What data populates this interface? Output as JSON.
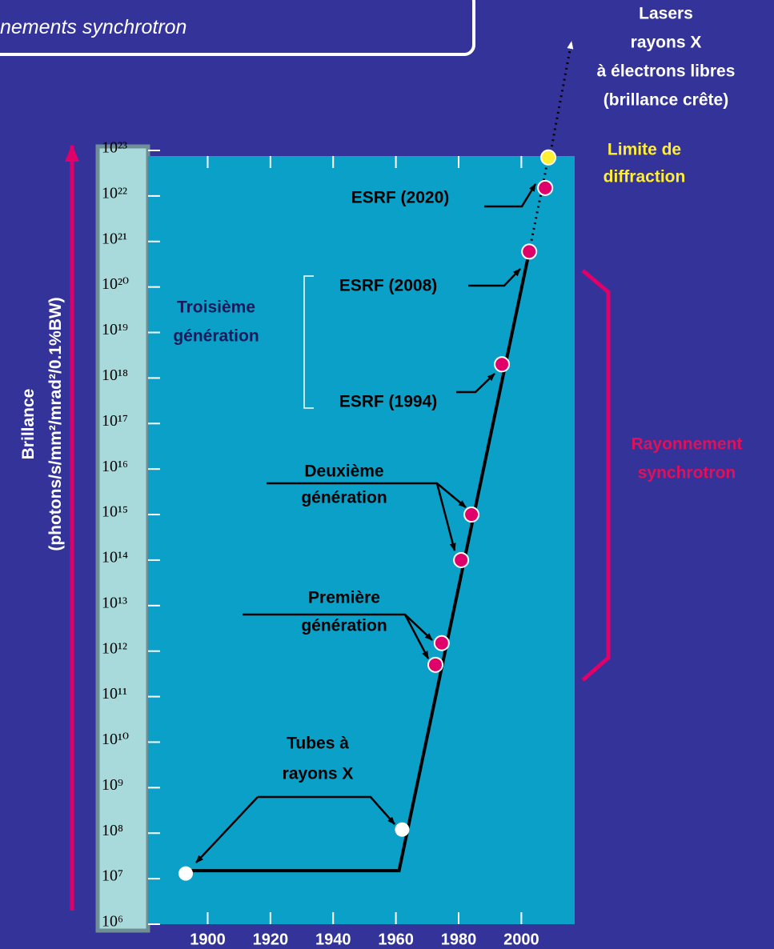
{
  "header": {
    "title": "nements synchrotron"
  },
  "chart_data": {
    "type": "scatter",
    "log_y": true,
    "y_label": [
      "Brillance",
      "(photons/s/mm²/mrad²/0.1%BW)"
    ],
    "xlim": [
      1881,
      2017
    ],
    "xticks": [
      1900,
      1920,
      1940,
      1960,
      1980,
      2000
    ],
    "ylim": [
      1000000.0,
      1e+23
    ],
    "yticks": [
      {
        "value": 1000000.0,
        "label": "10⁶"
      },
      {
        "value": 10000000.0,
        "label": "10⁷"
      },
      {
        "value": 100000000.0,
        "label": "10⁸"
      },
      {
        "value": 1000000000.0,
        "label": "10⁹"
      },
      {
        "value": 10000000000.0,
        "label": "10¹⁰"
      },
      {
        "value": 100000000000.0,
        "label": "10¹¹"
      },
      {
        "value": 1000000000000.0,
        "label": "10¹²"
      },
      {
        "value": 10000000000000.0,
        "label": "10¹³"
      },
      {
        "value": 100000000000000.0,
        "label": "10¹⁴"
      },
      {
        "value": 1000000000000000.0,
        "label": "10¹⁵"
      },
      {
        "value": 1e+16,
        "label": "10¹⁶"
      },
      {
        "value": 1e+17,
        "label": "10¹⁷"
      },
      {
        "value": 1e+18,
        "label": "10¹⁸"
      },
      {
        "value": 1e+19,
        "label": "10¹⁹"
      },
      {
        "value": 1e+20,
        "label": "10²⁰"
      },
      {
        "value": 1e+21,
        "label": "10²¹"
      },
      {
        "value": 1e+22,
        "label": "10²²"
      },
      {
        "value": 1e+23,
        "label": "10²³"
      }
    ],
    "lines": [
      {
        "color": "#000000",
        "style": "solid",
        "x": [
          1893,
          1961,
          2002.5
        ],
        "values": [
          15000000.0,
          15000000.0,
          6e+20
        ]
      },
      {
        "color": "#000000",
        "style": "dotted",
        "x": [
          2002.5,
          2008.6
        ],
        "values": [
          6e+20,
          7e+22
        ]
      }
    ],
    "series": [
      {
        "color": "#ffffff",
        "x": [
          1893,
          1962
        ],
        "values": [
          13000000.0,
          120000000.0
        ]
      },
      {
        "color": "#e0006a",
        "x": [
          1972.6,
          1974.6,
          1980.8,
          1984.1,
          1993.8,
          2002.5,
          2007.6
        ],
        "values": [
          500000000000.0,
          1500000000000.0,
          100000000000000.0,
          1000000000000000.0,
          2e+18,
          6e+20,
          1.5e+22
        ]
      },
      {
        "color": "#ffee33",
        "x": [
          2008.6
        ],
        "values": [
          7e+22
        ]
      }
    ],
    "annotations": [
      {
        "lines": [
          "Tubes à",
          "rayons X"
        ],
        "color": "#000000"
      },
      {
        "lines": [
          "Première",
          "génération"
        ],
        "color": "#000000"
      },
      {
        "lines": [
          "Deuxième",
          "génération"
        ],
        "color": "#000000"
      },
      {
        "lines": [
          "Troisième",
          "génération"
        ],
        "color": "#1a1a5a"
      },
      {
        "lines": [
          "ESRF (1994)"
        ],
        "color": "#000000"
      },
      {
        "lines": [
          "ESRF (2008)"
        ],
        "color": "#000000"
      },
      {
        "lines": [
          "ESRF (2020)"
        ],
        "color": "#000000"
      },
      {
        "lines": [
          "Limite de",
          "diffraction"
        ],
        "color": "#ffee33"
      },
      {
        "lines": [
          "Lasers",
          "rayons X",
          "à électrons libres",
          "(brillance crête)"
        ],
        "color": "#ffffff"
      },
      {
        "lines": [
          "Rayonnement",
          "synchrotron"
        ],
        "color": "#e0105a"
      }
    ]
  }
}
